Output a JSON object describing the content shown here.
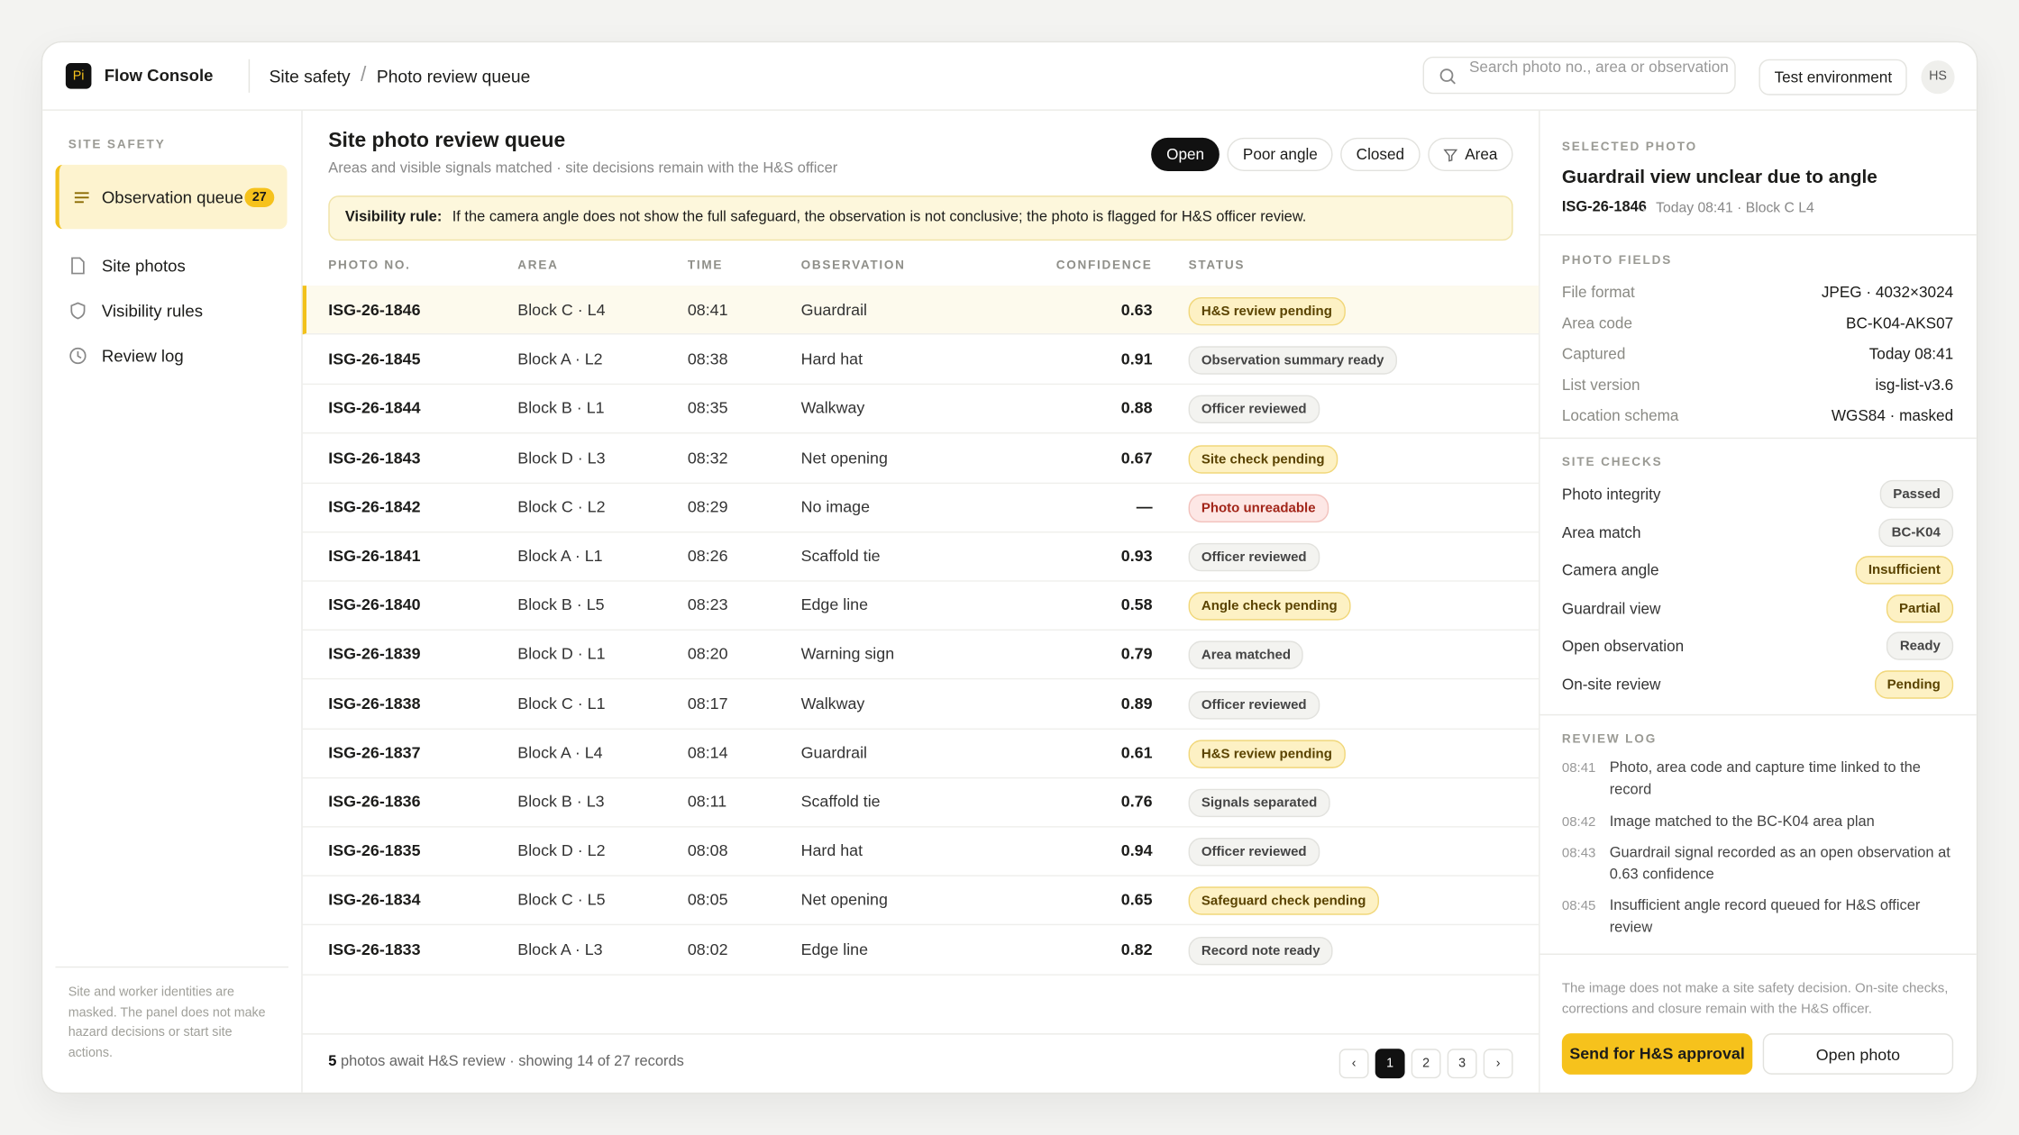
{
  "app": {
    "logo": "Pi",
    "name": "Flow Console",
    "breadcrumb": [
      "Site safety",
      "Photo review queue"
    ],
    "search": "Search photo no., area or observation",
    "environment": "Test environment",
    "avatar": "HS"
  },
  "sidebar": {
    "section": "SITE SAFETY",
    "items": [
      {
        "label": "Observation queue",
        "badge": "27"
      },
      {
        "label": "Site photos"
      },
      {
        "label": "Visibility rules"
      },
      {
        "label": "Review log"
      }
    ],
    "note": "Site and worker identities are masked. The panel does not make hazard decisions or start site actions."
  },
  "main": {
    "title": "Site photo review queue",
    "subtitle": "Areas and visible signals matched · site decisions remain with the H&S officer",
    "filters": [
      "Open",
      "Poor angle",
      "Closed",
      "Area"
    ],
    "rule_label": "Visibility rule:",
    "rule_text": "If the camera angle does not show the full safeguard, the observation is not conclusive; the photo is flagged for H&S officer review."
  },
  "table": {
    "columns": [
      "PHOTO NO.",
      "AREA",
      "TIME",
      "OBSERVATION",
      "CONFIDENCE",
      "STATUS"
    ],
    "rows": [
      [
        "ISG-26-1846",
        "Block C · L4",
        "08:41",
        "Guardrail",
        0.63,
        "H&S review pending"
      ],
      [
        "ISG-26-1845",
        "Block A · L2",
        "08:38",
        "Hard hat",
        0.91,
        "Observation summary ready"
      ],
      [
        "ISG-26-1844",
        "Block B · L1",
        "08:35",
        "Walkway",
        0.88,
        "Officer reviewed"
      ],
      [
        "ISG-26-1843",
        "Block D · L3",
        "08:32",
        "Net opening",
        0.67,
        "Site check pending"
      ],
      [
        "ISG-26-1842",
        "Block C · L2",
        "08:29",
        "No image",
        "—",
        "Photo unreadable"
      ],
      [
        "ISG-26-1841",
        "Block A · L1",
        "08:26",
        "Scaffold tie",
        0.93,
        "Officer reviewed"
      ],
      [
        "ISG-26-1840",
        "Block B · L5",
        "08:23",
        "Edge line",
        0.58,
        "Angle check pending"
      ],
      [
        "ISG-26-1839",
        "Block D · L1",
        "08:20",
        "Warning sign",
        0.79,
        "Area matched"
      ],
      [
        "ISG-26-1838",
        "Block C · L1",
        "08:17",
        "Walkway",
        0.89,
        "Officer reviewed"
      ],
      [
        "ISG-26-1837",
        "Block A · L4",
        "08:14",
        "Guardrail",
        0.61,
        "H&S review pending"
      ],
      [
        "ISG-26-1836",
        "Block B · L3",
        "08:11",
        "Scaffold tie",
        0.76,
        "Signals separated"
      ],
      [
        "ISG-26-1835",
        "Block D · L2",
        "08:08",
        "Hard hat",
        0.94,
        "Officer reviewed"
      ],
      [
        "ISG-26-1834",
        "Block C · L5",
        "08:05",
        "Net opening",
        0.65,
        "Safeguard check pending"
      ],
      [
        "ISG-26-1833",
        "Block A · L3",
        "08:02",
        "Edge line",
        0.82,
        "Record note ready"
      ]
    ],
    "status_tones": [
      "yellow",
      "gray",
      "gray",
      "yellow",
      "red",
      "gray",
      "yellow",
      "gray",
      "gray",
      "yellow",
      "gray",
      "gray",
      "yellow",
      "gray"
    ],
    "footer_count": "5",
    "footer_text": "photos await H&S review · showing 14 of 27 records",
    "pages": [
      "‹",
      "1",
      "2",
      "3",
      "›"
    ]
  },
  "detail": {
    "section": "SELECTED PHOTO",
    "title": "Guardrail view unclear due to angle",
    "id": "ISG-26-1846",
    "meta": "Today 08:41 · Block C L4",
    "fields_label": "PHOTO FIELDS",
    "fields": [
      [
        "File format",
        "JPEG · 4032×3024"
      ],
      [
        "Area code",
        "BC-K04-AKS07"
      ],
      [
        "Captured",
        "Today 08:41"
      ],
      [
        "List version",
        "isg-list-v3.6"
      ],
      [
        "Location schema",
        "WGS84 · masked"
      ]
    ],
    "checks_label": "SITE CHECKS",
    "checks": [
      [
        "Photo integrity",
        "Passed"
      ],
      [
        "Area match",
        "BC-K04"
      ],
      [
        "Camera angle",
        "Insufficient"
      ],
      [
        "Guardrail view",
        "Partial"
      ],
      [
        "Open observation",
        "Ready"
      ],
      [
        "On-site review",
        "Pending"
      ]
    ],
    "check_tones": [
      "gray",
      "gray",
      "yellow",
      "yellow",
      "gray",
      "yellow"
    ],
    "log_label": "REVIEW LOG",
    "log": [
      [
        "08:41",
        "Photo, area code and capture time linked to the record"
      ],
      [
        "08:42",
        "Image matched to the BC-K04 area plan"
      ],
      [
        "08:43",
        "Guardrail signal recorded as an open observation at 0.63 confidence"
      ],
      [
        "08:45",
        "Insufficient angle record queued for H&S officer review"
      ]
    ],
    "disclaimer": "The image does not make a site safety decision. On-site checks, corrections and closure remain with the H&S officer.",
    "primary": "Send for H&S approval",
    "secondary": "Open photo"
  }
}
